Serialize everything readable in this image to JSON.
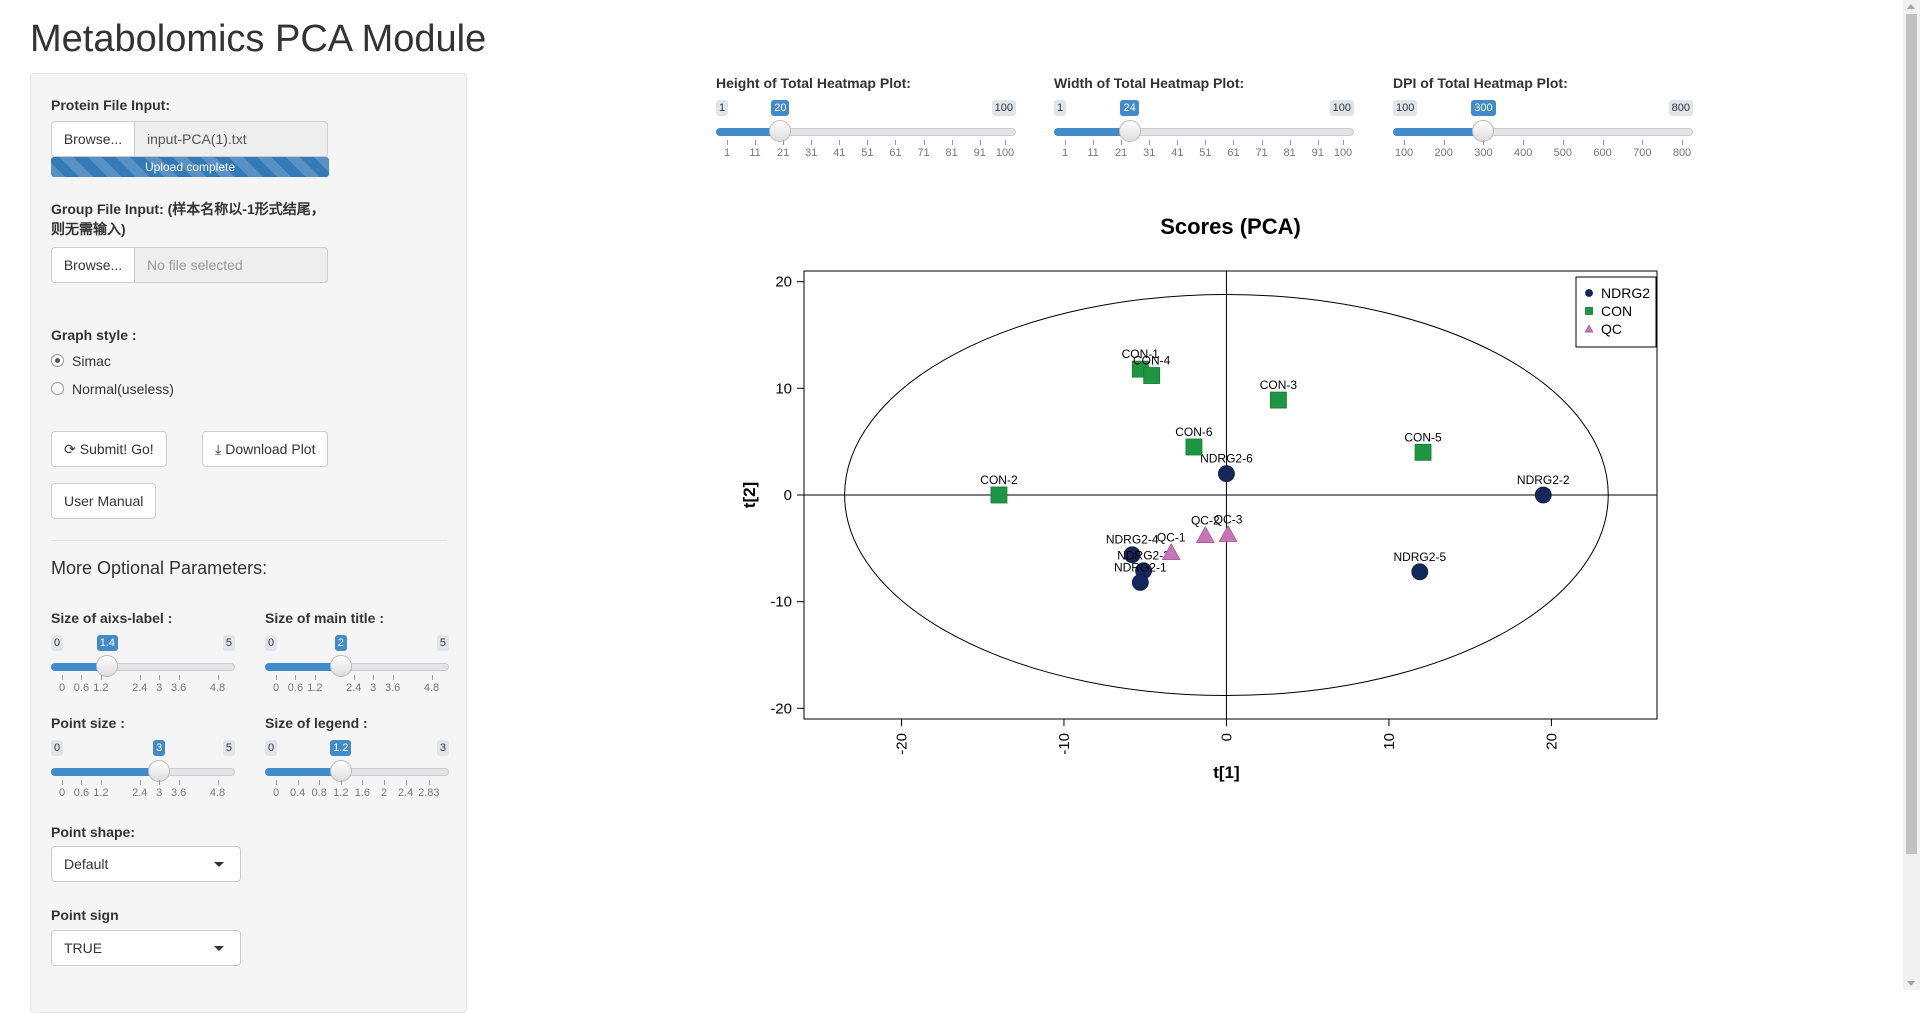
{
  "app": {
    "title": "Metabolomics PCA Module"
  },
  "sidebar": {
    "protein_file": {
      "label": "Protein File Input:",
      "browse": "Browse...",
      "filename": "input-PCA(1).txt",
      "progress": "Upload complete"
    },
    "group_file": {
      "label_line1": "Group File Input: (样本名称以-1形式结尾，",
      "label_line2": "则无需输入)",
      "browse": "Browse...",
      "placeholder": "No file selected"
    },
    "graph_style": {
      "label": "Graph style :",
      "options": [
        "Simac",
        "Normal(useless)"
      ],
      "selected": "Simac"
    },
    "buttons": {
      "submit": "Submit! Go!",
      "download": "Download Plot",
      "manual": "User Manual"
    },
    "optional_heading": "More Optional Parameters:",
    "axis_label_size": {
      "label": "Size of aixs-label :",
      "min": "0",
      "max": "5",
      "value": "1.4",
      "ticks": [
        "0",
        "0.6",
        "1.2",
        "2.4",
        "3",
        "3.6",
        "4.8"
      ]
    },
    "main_title_size": {
      "label": "Size of main title :",
      "min": "0",
      "max": "5",
      "value": "2",
      "ticks": [
        "0",
        "0.6",
        "1.2",
        "2.4",
        "3",
        "3.6",
        "4.8"
      ]
    },
    "point_size": {
      "label": "Point size :",
      "min": "0",
      "max": "5",
      "value": "3",
      "ticks": [
        "0",
        "0.6",
        "1.2",
        "2.4",
        "3",
        "3.6",
        "4.8"
      ]
    },
    "legend_size": {
      "label": "Size of legend :",
      "min": "0",
      "max": "3",
      "value": "1.2",
      "ticks": [
        "0",
        "0.4",
        "0.8",
        "1.2",
        "1.6",
        "2",
        "2.4",
        "2.83"
      ]
    },
    "point_shape": {
      "label": "Point shape:",
      "value": "Default"
    },
    "point_sign": {
      "label": "Point sign",
      "value": "TRUE"
    }
  },
  "top_sliders": {
    "height": {
      "label": "Height of Total Heatmap Plot:",
      "min": "1",
      "max": "100",
      "value": "20",
      "ticks": [
        "1",
        "11",
        "21",
        "31",
        "41",
        "51",
        "61",
        "71",
        "81",
        "91",
        "100"
      ]
    },
    "width": {
      "label": "Width of Total Heatmap Plot:",
      "min": "1",
      "max": "100",
      "value": "24",
      "ticks": [
        "1",
        "11",
        "21",
        "31",
        "41",
        "51",
        "61",
        "71",
        "81",
        "91",
        "100"
      ]
    },
    "dpi": {
      "label": "DPI of Total Heatmap Plot:",
      "min": "100",
      "max": "800",
      "value": "300",
      "ticks": [
        "100",
        "200",
        "300",
        "400",
        "500",
        "600",
        "700",
        "800"
      ]
    }
  },
  "chart_data": {
    "type": "scatter",
    "title": "Scores (PCA)",
    "xlabel": "t[1]",
    "ylabel": "t[2]",
    "xlim": [
      -26,
      26.5
    ],
    "ylim": [
      -21,
      21
    ],
    "xticks": [
      -20,
      -10,
      0,
      10,
      20
    ],
    "yticks": [
      -20,
      -10,
      0,
      10,
      20
    ],
    "legend_position": "top-right",
    "ellipse": {
      "cx": 0,
      "cy": 0,
      "rx": 23.5,
      "ry": 18.8
    },
    "series": [
      {
        "name": "NDRG2",
        "color": "#15285b",
        "marker": "circle",
        "points": [
          {
            "label": "NDRG2-6",
            "x": 0,
            "y": 2
          },
          {
            "label": "NDRG2-2",
            "x": 19.5,
            "y": 0
          },
          {
            "label": "NDRG2-5",
            "x": 11.9,
            "y": -7.2
          },
          {
            "label": "NDRG2-4",
            "x": -5.8,
            "y": -5.6
          },
          {
            "label": "NDRG2-3",
            "x": -5.1,
            "y": -7.1
          },
          {
            "label": "NDRG2-1",
            "x": -5.3,
            "y": -8.2
          }
        ]
      },
      {
        "name": "CON",
        "color": "#1e9641",
        "marker": "square",
        "points": [
          {
            "label": "CON-1",
            "x": -5.3,
            "y": 11.8
          },
          {
            "label": "CON-4",
            "x": -4.6,
            "y": 11.2
          },
          {
            "label": "CON-3",
            "x": 3.2,
            "y": 8.9
          },
          {
            "label": "CON-6",
            "x": -2,
            "y": 4.5
          },
          {
            "label": "CON-5",
            "x": 12.1,
            "y": 4
          },
          {
            "label": "CON-2",
            "x": -14,
            "y": 0
          }
        ]
      },
      {
        "name": "QC",
        "color": "#c875b8",
        "marker": "triangle",
        "points": [
          {
            "label": "QC-1",
            "x": -3.4,
            "y": -5.4
          },
          {
            "label": "QC-2",
            "x": -1.3,
            "y": -3.8
          },
          {
            "label": "QC-3",
            "x": 0.1,
            "y": -3.7
          }
        ]
      }
    ]
  }
}
